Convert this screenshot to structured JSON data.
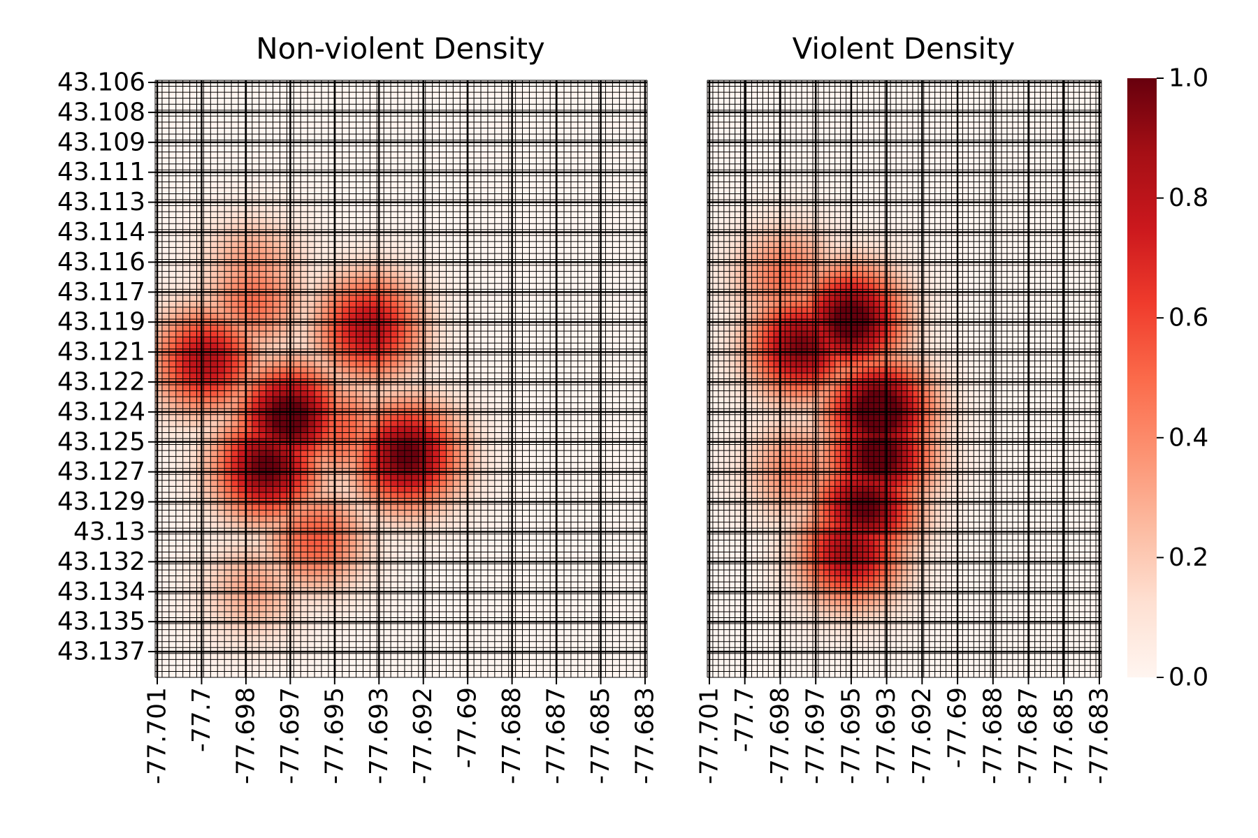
{
  "chart_data": [
    {
      "type": "heatmap",
      "title": "Non-violent Density",
      "colormap": "Reds",
      "y_tick_labels": [
        "43.106",
        "43.108",
        "43.109",
        "43.111",
        "43.113",
        "43.114",
        "43.116",
        "43.117",
        "43.119",
        "43.121",
        "43.122",
        "43.124",
        "43.125",
        "43.127",
        "43.129",
        "43.13",
        "43.132",
        "43.134",
        "43.135",
        "43.137"
      ],
      "x_tick_labels": [
        "-77.701",
        "-77.7",
        "-77.698",
        "-77.697",
        "-77.695",
        "-77.693",
        "-77.692",
        "-77.69",
        "-77.688",
        "-77.687",
        "-77.685",
        "-77.683"
      ],
      "value_range": [
        0,
        1
      ],
      "hotspots": [
        {
          "lon": -77.6962,
          "lat": 43.1241,
          "value": 0.95
        },
        {
          "lon": -77.697,
          "lat": 43.1268,
          "value": 0.9
        },
        {
          "lon": -77.6918,
          "lat": 43.1262,
          "value": 0.9
        },
        {
          "lon": -77.6993,
          "lat": 43.121,
          "value": 0.75
        },
        {
          "lon": -77.6932,
          "lat": 43.1192,
          "value": 0.75
        },
        {
          "lon": -77.6975,
          "lat": 43.1178,
          "value": 0.45
        },
        {
          "lon": -77.6943,
          "lat": 43.1248,
          "value": 0.5
        },
        {
          "lon": -77.6952,
          "lat": 43.1308,
          "value": 0.5
        },
        {
          "lon": -77.6975,
          "lat": 43.1335,
          "value": 0.3
        },
        {
          "lon": -77.6975,
          "lat": 43.116,
          "value": 0.35
        }
      ]
    },
    {
      "type": "heatmap",
      "title": "Violent Density",
      "colormap": "Reds",
      "y_tick_labels": [
        "43.106",
        "43.108",
        "43.109",
        "43.111",
        "43.113",
        "43.114",
        "43.116",
        "43.117",
        "43.119",
        "43.121",
        "43.122",
        "43.124",
        "43.125",
        "43.127",
        "43.129",
        "43.13",
        "43.132",
        "43.134",
        "43.135",
        "43.137"
      ],
      "x_tick_labels": [
        "-77.701",
        "-77.7",
        "-77.698",
        "-77.697",
        "-77.695",
        "-77.693",
        "-77.692",
        "-77.69",
        "-77.688",
        "-77.687",
        "-77.685",
        "-77.683"
      ],
      "value_range": [
        0,
        1
      ],
      "hotspots": [
        {
          "lon": -77.6968,
          "lat": 43.1202,
          "value": 0.85
        },
        {
          "lon": -77.6945,
          "lat": 43.1188,
          "value": 0.95
        },
        {
          "lon": -77.6932,
          "lat": 43.1238,
          "value": 1.0
        },
        {
          "lon": -77.6932,
          "lat": 43.1262,
          "value": 0.95
        },
        {
          "lon": -77.6938,
          "lat": 43.129,
          "value": 0.9
        },
        {
          "lon": -77.6945,
          "lat": 43.1315,
          "value": 0.8
        },
        {
          "lon": -77.697,
          "lat": 43.127,
          "value": 0.4
        },
        {
          "lon": -77.6975,
          "lat": 43.1165,
          "value": 0.45
        }
      ]
    }
  ],
  "colorbar": {
    "ticks": [
      "0.0",
      "0.2",
      "0.4",
      "0.6",
      "0.8",
      "1.0"
    ],
    "range": [
      0,
      1
    ]
  }
}
